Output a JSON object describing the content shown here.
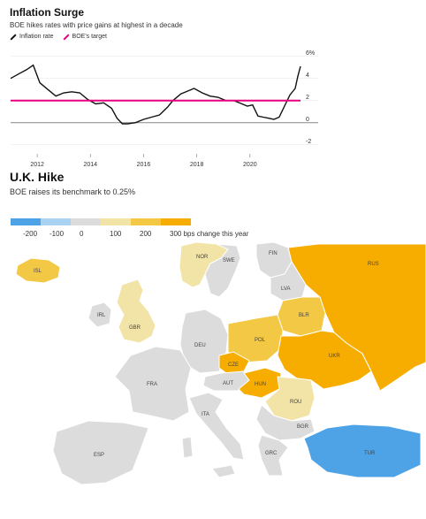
{
  "chart1": {
    "title": "Inflation Surge",
    "subtitle": "BOE hikes rates with price gains at highest in a decade",
    "legend": [
      {
        "label": "Inflation rate",
        "color": "#111111"
      },
      {
        "label": "BOE's target",
        "color": "#e6007e"
      }
    ]
  },
  "chart2": {
    "title": "U.K. Hike",
    "subtitle": "BOE raises its benchmark to 0.25%",
    "scale_labels": [
      "-200",
      "-100",
      "0",
      "100",
      "200",
      "300 bps change this year"
    ]
  },
  "chart_data": [
    {
      "type": "line",
      "title": "Inflation Surge",
      "subtitle": "BOE hikes rates with price gains at highest in a decade",
      "xlim": [
        2011,
        2021.9
      ],
      "ylim": [
        -2.5,
        6.3
      ],
      "y_ticks": [
        6,
        4,
        2,
        0,
        -2
      ],
      "y_tick_labels": [
        "6%",
        "4",
        "2",
        "0",
        "-2"
      ],
      "x_ticks": [
        2012,
        2014,
        2016,
        2018,
        2020
      ],
      "grid": "horizontal",
      "series": [
        {
          "name": "Inflation rate",
          "color": "#111111",
          "x": [
            2011.0,
            2011.3,
            2011.6,
            2011.85,
            2012.1,
            2012.4,
            2012.7,
            2013.0,
            2013.3,
            2013.6,
            2013.9,
            2014.2,
            2014.5,
            2014.8,
            2015.0,
            2015.2,
            2015.4,
            2015.7,
            2016.0,
            2016.3,
            2016.6,
            2016.9,
            2017.1,
            2017.4,
            2017.7,
            2017.9,
            2018.2,
            2018.5,
            2018.8,
            2019.1,
            2019.4,
            2019.7,
            2019.9,
            2020.1,
            2020.3,
            2020.5,
            2020.7,
            2020.9,
            2021.1,
            2021.3,
            2021.5,
            2021.7,
            2021.8,
            2021.9
          ],
          "y": [
            4.0,
            4.4,
            4.8,
            5.2,
            3.6,
            3.0,
            2.4,
            2.7,
            2.8,
            2.7,
            2.1,
            1.7,
            1.8,
            1.3,
            0.4,
            -0.1,
            -0.1,
            0.0,
            0.3,
            0.5,
            0.7,
            1.4,
            2.0,
            2.6,
            2.9,
            3.1,
            2.7,
            2.4,
            2.3,
            2.0,
            2.0,
            1.7,
            1.5,
            1.6,
            0.6,
            0.5,
            0.4,
            0.3,
            0.5,
            1.5,
            2.5,
            3.1,
            4.2,
            5.1
          ]
        },
        {
          "name": "BOE's target",
          "color": "#e6007e",
          "x": [
            2011.0,
            2021.9
          ],
          "y": [
            2,
            2
          ]
        }
      ]
    },
    {
      "type": "choropleth",
      "title": "U.K. Hike",
      "subtitle": "BOE raises its benchmark to 0.25%",
      "legend_unit": "bps change this year",
      "scale": [
        {
          "value": -200,
          "color": "#4da3e6"
        },
        {
          "value": -100,
          "color": "#a9d3f1"
        },
        {
          "value": 0,
          "color": "#dcdcdc"
        },
        {
          "value": 100,
          "color": "#f2e3a6"
        },
        {
          "value": 200,
          "color": "#f2c844"
        },
        {
          "value": 300,
          "color": "#f7ad00"
        }
      ],
      "countries": [
        {
          "code": "ISL",
          "bucket": 200
        },
        {
          "code": "NOR",
          "bucket": 100
        },
        {
          "code": "SWE",
          "bucket": 0
        },
        {
          "code": "FIN",
          "bucket": 0
        },
        {
          "code": "RUS",
          "bucket": 300
        },
        {
          "code": "IRL",
          "bucket": 0
        },
        {
          "code": "GBR",
          "bucket": 100
        },
        {
          "code": "LVA",
          "bucket": 0
        },
        {
          "code": "BLR",
          "bucket": 200
        },
        {
          "code": "DEU",
          "bucket": 0
        },
        {
          "code": "POL",
          "bucket": 200
        },
        {
          "code": "UKR",
          "bucket": 300
        },
        {
          "code": "CZE",
          "bucket": 300
        },
        {
          "code": "FRA",
          "bucket": 0
        },
        {
          "code": "AUT",
          "bucket": 0
        },
        {
          "code": "HUN",
          "bucket": 300
        },
        {
          "code": "ROU",
          "bucket": 100
        },
        {
          "code": "ITA",
          "bucket": 0
        },
        {
          "code": "ESP",
          "bucket": 0
        },
        {
          "code": "BGR",
          "bucket": 0
        },
        {
          "code": "GRC",
          "bucket": 0
        },
        {
          "code": "TUR",
          "bucket": -200
        }
      ]
    }
  ]
}
